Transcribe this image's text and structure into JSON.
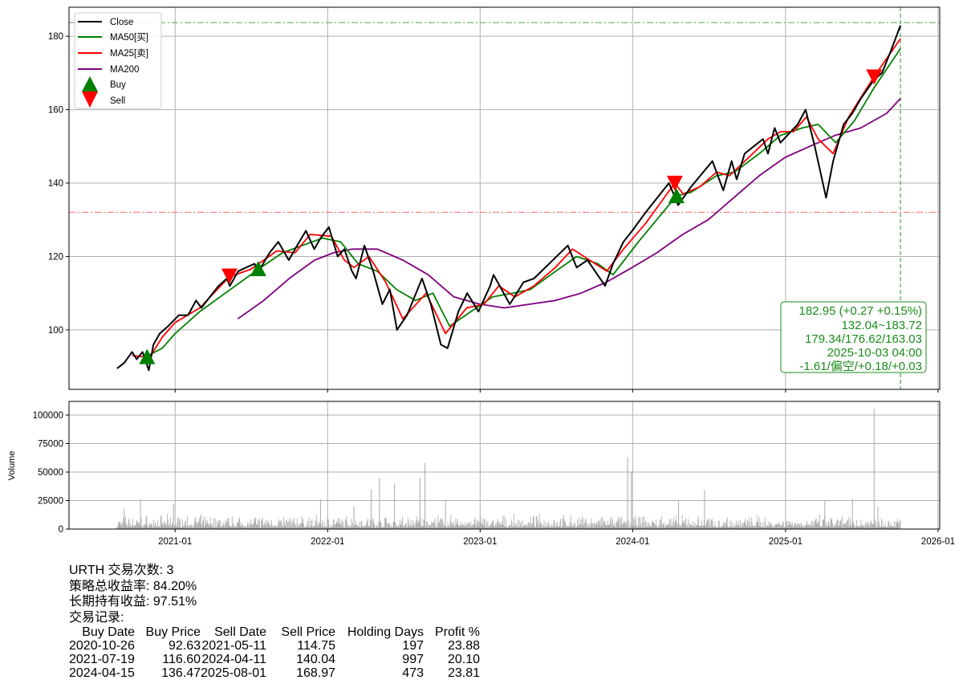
{
  "chart_data": [
    {
      "type": "line",
      "panel": "price",
      "ylim": [
        83.8,
        187.9
      ],
      "xlim": [
        "2020-04-22",
        "2026-01-05"
      ],
      "x_ticks": [
        "2021-01",
        "2022-01",
        "2023-01",
        "2024-01",
        "2025-01",
        "2026-01"
      ],
      "y_ticks": [
        100,
        120,
        140,
        160,
        180
      ],
      "grid": true,
      "legend_position": "top-left",
      "legend": [
        "Close",
        "MA50[买]",
        "MA25[卖]",
        "MA200",
        "Buy",
        "Sell"
      ],
      "colors": {
        "close": "#000000",
        "ma50": "#008000",
        "ma25": "#ff0000",
        "ma200": "#800080",
        "buy": "#008000",
        "sell": "#ff0000",
        "high_line": "#2e8b2e",
        "low_line": "#ff4444",
        "info": "#1a8c1a"
      },
      "series": [
        {
          "name": "Close",
          "points": [
            [
              "2020-08-15",
              89.5
            ],
            [
              "2020-09-01",
              91
            ],
            [
              "2020-09-20",
              94
            ],
            [
              "2020-10-01",
              92
            ],
            [
              "2020-10-15",
              94
            ],
            [
              "2020-10-30",
              89
            ],
            [
              "2020-11-10",
              96
            ],
            [
              "2020-11-25",
              99
            ],
            [
              "2020-12-15",
              101
            ],
            [
              "2021-01-10",
              104
            ],
            [
              "2021-02-01",
              104
            ],
            [
              "2021-02-20",
              108
            ],
            [
              "2021-03-05",
              106
            ],
            [
              "2021-03-25",
              109
            ],
            [
              "2021-04-15",
              112
            ],
            [
              "2021-05-05",
              114
            ],
            [
              "2021-05-12",
              112
            ],
            [
              "2021-06-01",
              116
            ],
            [
              "2021-06-20",
              117
            ],
            [
              "2021-07-10",
              118
            ],
            [
              "2021-07-20",
              116
            ],
            [
              "2021-08-15",
              121
            ],
            [
              "2021-09-05",
              124
            ],
            [
              "2021-09-30",
              119
            ],
            [
              "2021-10-20",
              123
            ],
            [
              "2021-11-10",
              127
            ],
            [
              "2021-11-30",
              122
            ],
            [
              "2021-12-15",
              125
            ],
            [
              "2022-01-04",
              128
            ],
            [
              "2022-01-25",
              120
            ],
            [
              "2022-02-10",
              122
            ],
            [
              "2022-02-28",
              116
            ],
            [
              "2022-03-10",
              114
            ],
            [
              "2022-03-30",
              123
            ],
            [
              "2022-04-20",
              116
            ],
            [
              "2022-05-12",
              107
            ],
            [
              "2022-05-30",
              111
            ],
            [
              "2022-06-16",
              100
            ],
            [
              "2022-07-10",
              104
            ],
            [
              "2022-08-15",
              114
            ],
            [
              "2022-09-05",
              107
            ],
            [
              "2022-09-29",
              96
            ],
            [
              "2022-10-15",
              95
            ],
            [
              "2022-11-10",
              105
            ],
            [
              "2022-12-01",
              110
            ],
            [
              "2022-12-28",
              105
            ],
            [
              "2023-01-25",
              112
            ],
            [
              "2023-02-02",
              115
            ],
            [
              "2023-03-13",
              107
            ],
            [
              "2023-04-15",
              113
            ],
            [
              "2023-05-10",
              114
            ],
            [
              "2023-06-15",
              118
            ],
            [
              "2023-07-30",
              123
            ],
            [
              "2023-08-20",
              117
            ],
            [
              "2023-09-15",
              119
            ],
            [
              "2023-10-27",
              112
            ],
            [
              "2023-11-15",
              118
            ],
            [
              "2023-12-10",
              124
            ],
            [
              "2023-12-31",
              127
            ],
            [
              "2024-02-01",
              132
            ],
            [
              "2024-03-28",
              140
            ],
            [
              "2024-04-19",
              134
            ],
            [
              "2024-05-20",
              139
            ],
            [
              "2024-07-10",
              146
            ],
            [
              "2024-08-05",
              138
            ],
            [
              "2024-08-25",
              146
            ],
            [
              "2024-09-06",
              141
            ],
            [
              "2024-09-25",
              148
            ],
            [
              "2024-11-08",
              152
            ],
            [
              "2024-11-20",
              148
            ],
            [
              "2024-12-06",
              155
            ],
            [
              "2024-12-20",
              151
            ],
            [
              "2025-01-30",
              156
            ],
            [
              "2025-02-18",
              160
            ],
            [
              "2025-03-12",
              150
            ],
            [
              "2025-04-08",
              136
            ],
            [
              "2025-04-25",
              146
            ],
            [
              "2025-05-20",
              156
            ],
            [
              "2025-06-10",
              159
            ],
            [
              "2025-06-30",
              163
            ],
            [
              "2025-07-31",
              168
            ],
            [
              "2025-08-20",
              170
            ],
            [
              "2025-09-10",
              176
            ],
            [
              "2025-10-03",
              182.95
            ]
          ]
        },
        {
          "name": "MA50[买]",
          "points": [
            [
              "2020-10-20",
              92.5
            ],
            [
              "2020-12-01",
              95
            ],
            [
              "2021-01-01",
              99
            ],
            [
              "2021-03-01",
              105
            ],
            [
              "2021-05-01",
              110
            ],
            [
              "2021-07-19",
              116.5
            ],
            [
              "2021-09-15",
              121
            ],
            [
              "2021-11-01",
              123
            ],
            [
              "2021-12-20",
              125
            ],
            [
              "2022-02-01",
              124
            ],
            [
              "2022-03-15",
              118
            ],
            [
              "2022-04-30",
              116
            ],
            [
              "2022-06-15",
              111
            ],
            [
              "2022-07-30",
              108
            ],
            [
              "2022-09-10",
              110
            ],
            [
              "2022-10-20",
              101
            ],
            [
              "2022-12-10",
              105
            ],
            [
              "2023-01-31",
              109
            ],
            [
              "2023-03-20",
              110
            ],
            [
              "2023-05-01",
              111
            ],
            [
              "2023-07-01",
              116
            ],
            [
              "2023-08-20",
              120
            ],
            [
              "2023-10-10",
              118
            ],
            [
              "2023-11-15",
              115
            ],
            [
              "2024-01-15",
              124
            ],
            [
              "2024-04-15",
              136.5
            ],
            [
              "2024-05-20",
              137.5
            ],
            [
              "2024-07-20",
              142
            ],
            [
              "2024-09-01",
              143
            ],
            [
              "2024-10-30",
              148
            ],
            [
              "2024-12-20",
              153
            ],
            [
              "2025-02-10",
              155
            ],
            [
              "2025-03-20",
              156
            ],
            [
              "2025-05-01",
              151
            ],
            [
              "2025-06-15",
              157
            ],
            [
              "2025-08-01",
              166
            ],
            [
              "2025-10-03",
              176.62
            ]
          ]
        },
        {
          "name": "MA25[卖]",
          "points": [
            [
              "2020-09-20",
              93
            ],
            [
              "2020-11-01",
              92.5
            ],
            [
              "2020-12-01",
              98
            ],
            [
              "2021-01-01",
              102
            ],
            [
              "2021-03-01",
              106
            ],
            [
              "2021-05-11",
              114.5
            ],
            [
              "2021-07-01",
              116.5
            ],
            [
              "2021-09-01",
              121.5
            ],
            [
              "2021-10-15",
              121
            ],
            [
              "2021-11-20",
              126
            ],
            [
              "2022-01-10",
              125.5
            ],
            [
              "2022-02-10",
              119
            ],
            [
              "2022-03-05",
              117
            ],
            [
              "2022-04-10",
              120
            ],
            [
              "2022-05-20",
              113
            ],
            [
              "2022-06-30",
              103
            ],
            [
              "2022-08-25",
              110
            ],
            [
              "2022-10-10",
              99
            ],
            [
              "2022-11-30",
              106
            ],
            [
              "2023-01-10",
              107
            ],
            [
              "2023-02-15",
              112
            ],
            [
              "2023-03-25",
              109
            ],
            [
              "2023-05-10",
              112
            ],
            [
              "2023-06-30",
              117
            ],
            [
              "2023-08-10",
              122
            ],
            [
              "2023-09-20",
              119
            ],
            [
              "2023-10-31",
              116
            ],
            [
              "2023-12-10",
              122
            ],
            [
              "2024-02-01",
              129
            ],
            [
              "2024-04-11",
              140
            ],
            [
              "2024-05-01",
              137
            ],
            [
              "2024-06-10",
              139
            ],
            [
              "2024-07-20",
              143
            ],
            [
              "2024-08-20",
              142
            ],
            [
              "2024-10-05",
              147
            ],
            [
              "2024-11-20",
              152
            ],
            [
              "2024-12-20",
              154
            ],
            [
              "2025-01-20",
              154
            ],
            [
              "2025-02-20",
              158
            ],
            [
              "2025-03-20",
              152
            ],
            [
              "2025-04-25",
              148
            ],
            [
              "2025-06-01",
              158
            ],
            [
              "2025-08-01",
              169
            ],
            [
              "2025-10-03",
              179.34
            ]
          ]
        },
        {
          "name": "MA200",
          "points": [
            [
              "2021-05-31",
              103
            ],
            [
              "2021-08-01",
              108
            ],
            [
              "2021-10-01",
              114
            ],
            [
              "2021-12-01",
              119
            ],
            [
              "2022-01-15",
              121
            ],
            [
              "2022-03-01",
              122
            ],
            [
              "2022-04-30",
              122
            ],
            [
              "2022-06-30",
              119
            ],
            [
              "2022-08-30",
              115
            ],
            [
              "2022-10-30",
              109
            ],
            [
              "2022-12-31",
              107
            ],
            [
              "2023-02-28",
              106
            ],
            [
              "2023-04-30",
              107
            ],
            [
              "2023-06-30",
              108
            ],
            [
              "2023-08-30",
              110
            ],
            [
              "2023-10-30",
              113
            ],
            [
              "2023-12-31",
              117
            ],
            [
              "2024-02-28",
              121
            ],
            [
              "2024-04-30",
              126
            ],
            [
              "2024-06-30",
              130
            ],
            [
              "2024-08-30",
              136
            ],
            [
              "2024-10-30",
              142
            ],
            [
              "2024-12-31",
              147
            ],
            [
              "2025-02-28",
              150
            ],
            [
              "2025-04-30",
              153
            ],
            [
              "2025-06-30",
              155
            ],
            [
              "2025-08-31",
              159
            ],
            [
              "2025-10-03",
              163.03
            ]
          ]
        }
      ],
      "buy_signals": [
        [
          "2020-10-26",
          92.63
        ],
        [
          "2021-07-19",
          116.6
        ],
        [
          "2024-04-15",
          136.47
        ]
      ],
      "sell_signals": [
        [
          "2021-05-11",
          114.75
        ],
        [
          "2024-04-11",
          140.04
        ],
        [
          "2025-08-01",
          168.97
        ]
      ],
      "hlines": {
        "high": 183.72,
        "low": 132.04
      },
      "vline_date": "2025-10-03",
      "info_box": [
        "182.95 (+0.27 +0.15%)",
        "132.04~183.72",
        "179.34/176.62/163.03",
        "2025-10-03 04:00",
        "-1.61/偏空/+0.18/+0.03"
      ]
    },
    {
      "type": "bar",
      "panel": "volume",
      "ylabel": "Volume",
      "ylim": [
        0,
        112000
      ],
      "y_ticks": [
        0,
        25000,
        50000,
        75000,
        100000
      ],
      "grid": true,
      "color": "#aaaaaa",
      "notable_bars": [
        [
          "2020-09-01",
          18000
        ],
        [
          "2020-10-10",
          26000
        ],
        [
          "2020-12-28",
          22000
        ],
        [
          "2021-12-15",
          26000
        ],
        [
          "2022-03-05",
          20000
        ],
        [
          "2022-04-15",
          35000
        ],
        [
          "2022-05-05",
          45000
        ],
        [
          "2022-06-10",
          40000
        ],
        [
          "2022-08-10",
          45000
        ],
        [
          "2022-08-22",
          58000
        ],
        [
          "2022-10-10",
          25000
        ],
        [
          "2023-12-20",
          63000
        ],
        [
          "2023-12-29",
          50000
        ],
        [
          "2024-04-20",
          25000
        ],
        [
          "2024-06-21",
          34000
        ],
        [
          "2025-04-05",
          25000
        ],
        [
          "2025-06-10",
          27000
        ],
        [
          "2025-08-01",
          106000
        ],
        [
          "2025-08-10",
          20000
        ]
      ]
    }
  ],
  "summary": {
    "line1": "URTH 交易次数: 3",
    "line2": "策略总收益率: 84.20%",
    "line3": "长期持有收益: 97.51%",
    "line4": "交易记录:",
    "headers": [
      "Buy Date",
      "Buy Price",
      "Sell Date",
      "Sell Price",
      "Holding Days",
      "Profit %"
    ],
    "rows": [
      [
        "2020-10-26",
        "92.63",
        "2021-05-11",
        "114.75",
        "197",
        "23.88"
      ],
      [
        "2021-07-19",
        "116.60",
        "2024-04-11",
        "140.04",
        "997",
        "20.10"
      ],
      [
        "2024-04-15",
        "136.47",
        "2025-08-01",
        "168.97",
        "473",
        "23.81"
      ]
    ]
  }
}
